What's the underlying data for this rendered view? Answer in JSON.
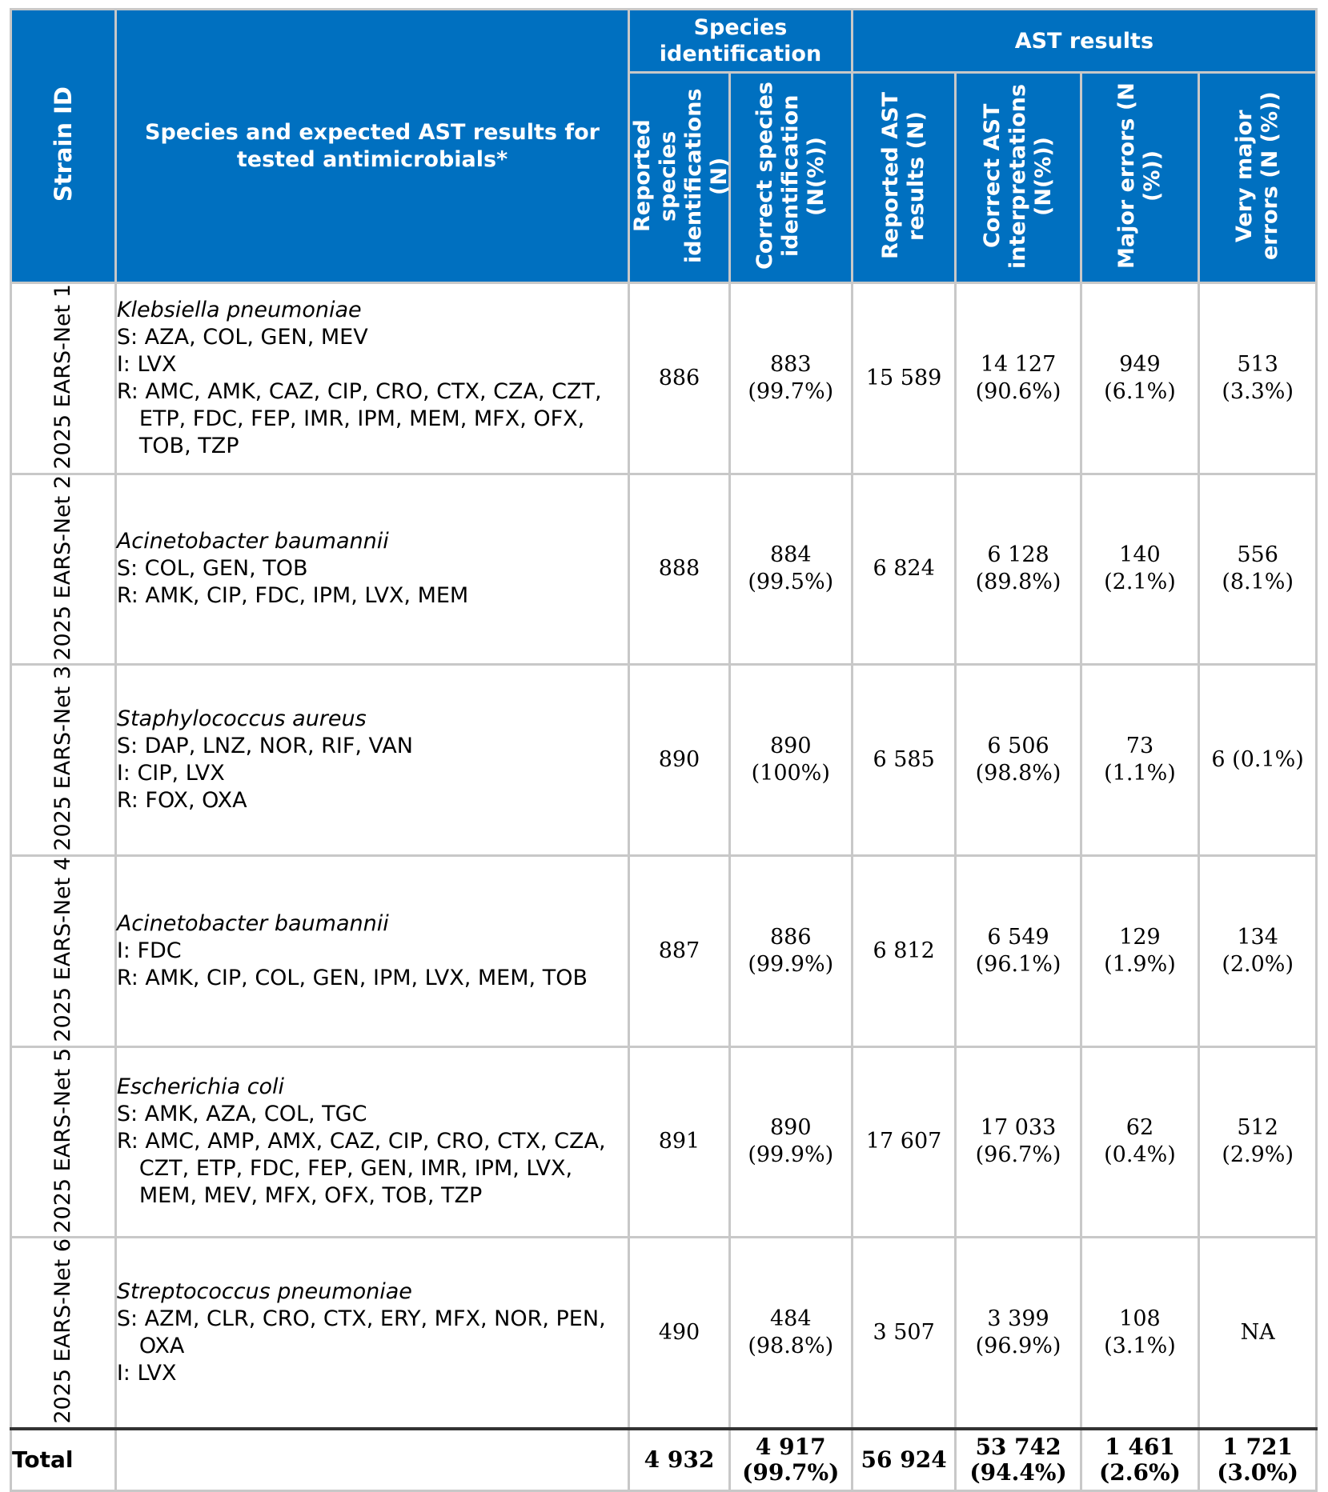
{
  "header": {
    "strain_id": "Strain ID",
    "species_expected": "Species and expected AST results for tested antimicrobials*",
    "species_identification": "Species identification",
    "ast_results": "AST results",
    "reported_species": "Reported species identifications (N)",
    "correct_species": "Correct species identification (N(%))",
    "reported_ast": "Reported AST results (N)",
    "correct_ast": "Correct AST interpretations (N(%))",
    "major_errors": "Major errors (N (%))",
    "very_major_errors": "Very major errors (N (%))"
  },
  "rows": [
    {
      "strain": "2025 EARS-Net 1",
      "species": "Klebsiella pneumoniae",
      "lines": [
        "S: AZA, COL, GEN, MEV",
        "I: LVX",
        "R: AMC, AMK, CAZ, CIP, CRO, CTX, CZA, CZT, ETP, FDC, FEP, IMR, IPM, MEM, MFX, OFX, TOB, TZP"
      ],
      "reported_species": "886",
      "correct_species": "883\n(99.7%)",
      "reported_ast": "15 589",
      "correct_ast": "14 127\n(90.6%)",
      "major_errors": "949\n(6.1%)",
      "very_major_errors": "513\n(3.3%)"
    },
    {
      "strain": "2025 EARS-Net 2",
      "species": "Acinetobacter baumannii",
      "lines": [
        "S: COL, GEN, TOB",
        "R: AMK, CIP, FDC, IPM, LVX, MEM"
      ],
      "reported_species": "888",
      "correct_species": "884\n(99.5%)",
      "reported_ast": "6 824",
      "correct_ast": "6 128\n(89.8%)",
      "major_errors": "140\n(2.1%)",
      "very_major_errors": "556\n(8.1%)"
    },
    {
      "strain": "2025 EARS-Net 3",
      "species": "Staphylococcus aureus",
      "lines": [
        "S: DAP, LNZ, NOR, RIF, VAN",
        "I: CIP, LVX",
        "R: FOX, OXA"
      ],
      "reported_species": "890",
      "correct_species": "890\n(100%)",
      "reported_ast": "6 585",
      "correct_ast": "6 506\n(98.8%)",
      "major_errors": "73\n(1.1%)",
      "very_major_errors": "6 (0.1%)"
    },
    {
      "strain": "2025 EARS-Net 4",
      "species": "Acinetobacter baumannii",
      "lines": [
        "I: FDC",
        "R: AMK, CIP, COL, GEN, IPM, LVX, MEM, TOB"
      ],
      "reported_species": "887",
      "correct_species": "886\n(99.9%)",
      "reported_ast": "6 812",
      "correct_ast": "6 549\n(96.1%)",
      "major_errors": "129\n(1.9%)",
      "very_major_errors": "134\n(2.0%)"
    },
    {
      "strain": "2025 EARS-Net 5",
      "species": "Escherichia coli",
      "lines": [
        "S: AMK, AZA, COL, TGC",
        "R: AMC, AMP, AMX, CAZ, CIP, CRO, CTX, CZA, CZT, ETP, FDC, FEP, GEN, IMR, IPM, LVX, MEM, MEV, MFX, OFX, TOB, TZP"
      ],
      "reported_species": "891",
      "correct_species": "890\n(99.9%)",
      "reported_ast": "17 607",
      "correct_ast": "17 033\n(96.7%)",
      "major_errors": "62\n(0.4%)",
      "very_major_errors": "512\n(2.9%)"
    },
    {
      "strain": "2025 EARS-Net 6",
      "species": "Streptococcus pneumoniae",
      "lines": [
        "S: AZM, CLR, CRO, CTX, ERY, MFX, NOR, PEN, OXA",
        "I: LVX"
      ],
      "reported_species": "490",
      "correct_species": "484\n(98.8%)",
      "reported_ast": "3 507",
      "correct_ast": "3 399\n(96.9%)",
      "major_errors": "108\n(3.1%)",
      "very_major_errors": "NA"
    }
  ],
  "total": {
    "label": "Total",
    "reported_species": "4 932",
    "correct_species": "4 917\n(99.7%)",
    "reported_ast": "56 924",
    "correct_ast": "53 742\n(94.4%)",
    "major_errors": "1 461\n(2.6%)",
    "very_major_errors": "1 721\n(3.0%)"
  }
}
